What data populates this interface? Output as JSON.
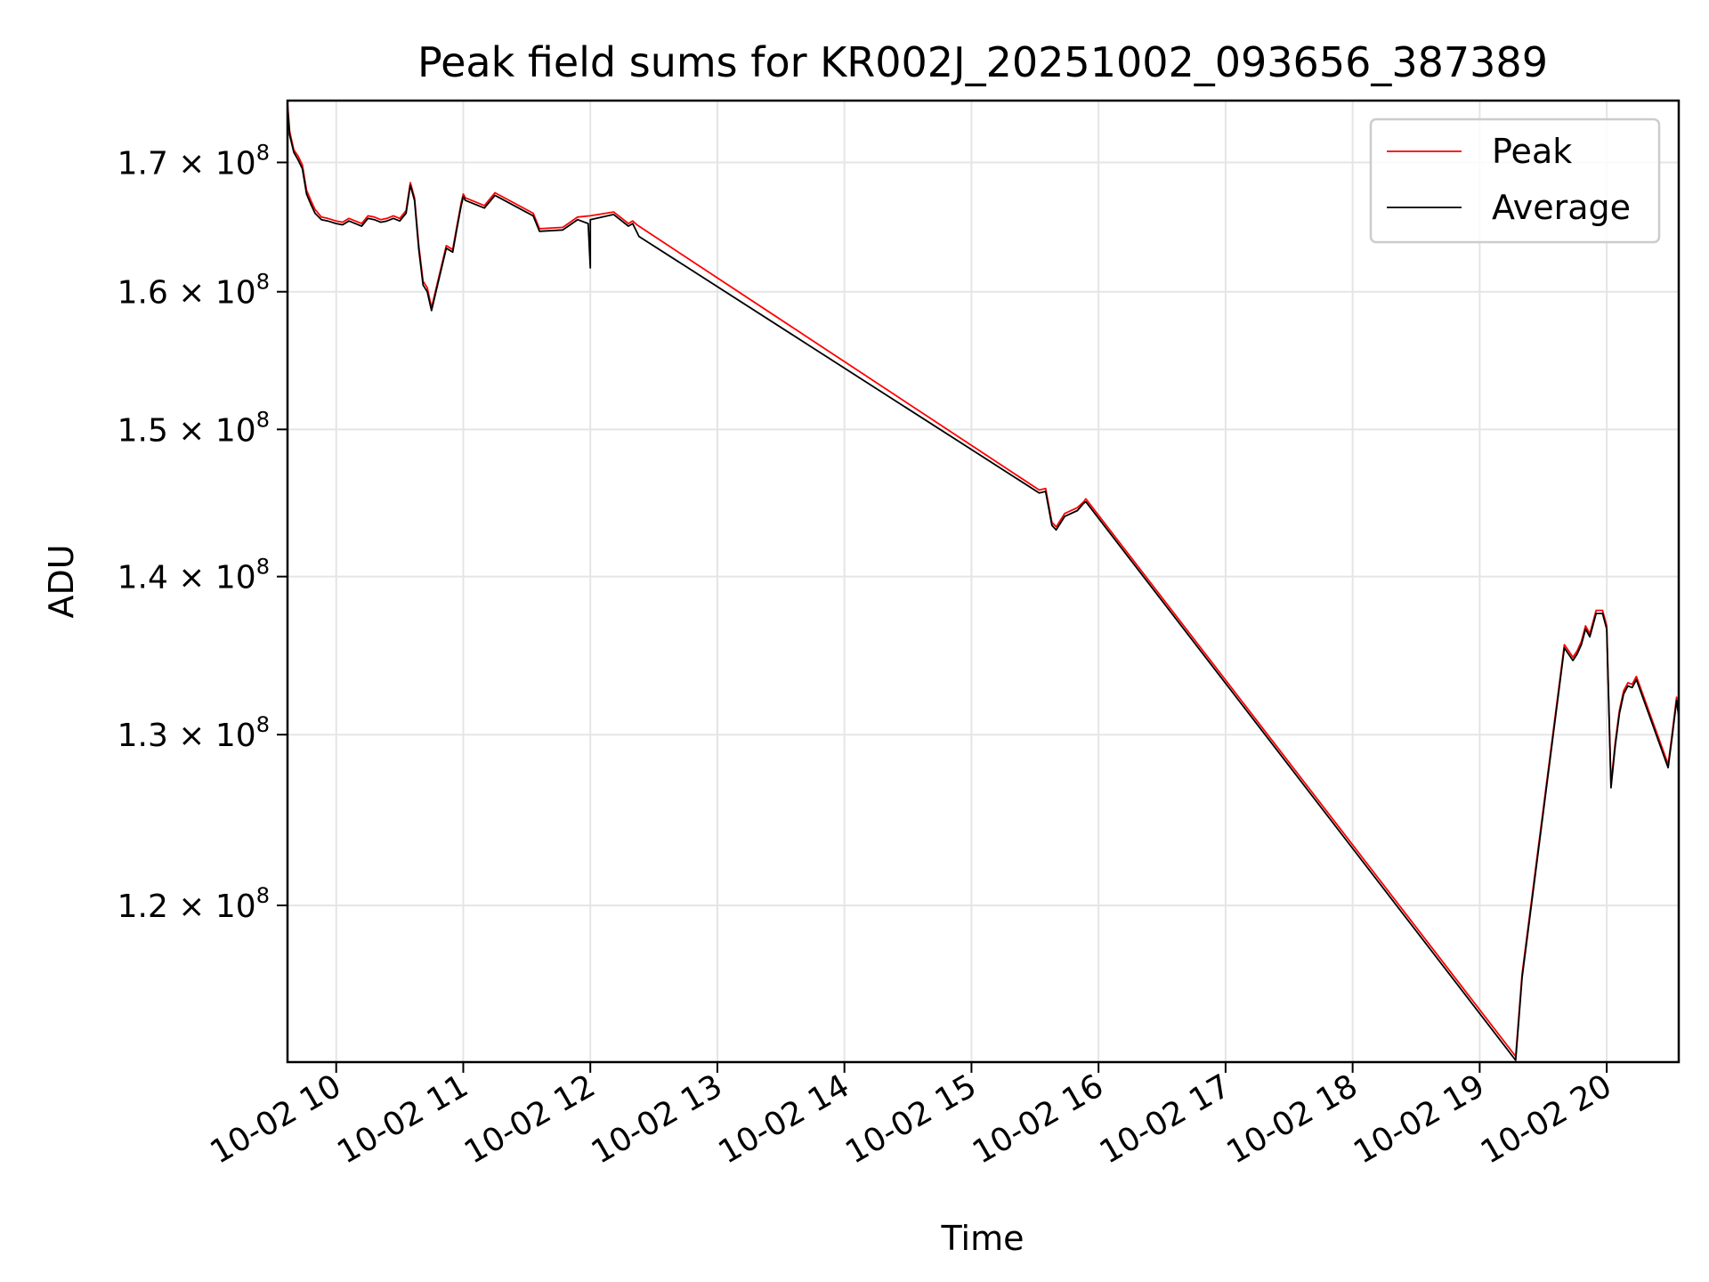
{
  "chart_data": {
    "type": "line",
    "title": "Peak field sums for KR002J_20251002_093656_387389",
    "xlabel": "Time",
    "ylabel": "ADU",
    "yscale": "log",
    "grid": true,
    "legend_position": "top-right",
    "x_ticks": [
      "10-02 10",
      "10-02 11",
      "10-02 12",
      "10-02 13",
      "10-02 14",
      "10-02 15",
      "10-02 16",
      "10-02 17",
      "10-02 18",
      "10-02 19",
      "10-02 20"
    ],
    "y_ticks": [
      {
        "value": 120000000,
        "mantissa": "1.2",
        "exponent": "8"
      },
      {
        "value": 130000000,
        "mantissa": "1.3",
        "exponent": "8"
      },
      {
        "value": 140000000,
        "mantissa": "1.4",
        "exponent": "8"
      },
      {
        "value": 150000000,
        "mantissa": "1.5",
        "exponent": "8"
      },
      {
        "value": 160000000,
        "mantissa": "1.6",
        "exponent": "8"
      },
      {
        "value": 170000000,
        "mantissa": "1.7",
        "exponent": "8"
      }
    ],
    "x_range": [
      "2025-10-02 09:37",
      "2025-10-02 20:34"
    ],
    "y_range": [
      111500000,
      175000000
    ],
    "series": [
      {
        "name": "Peak",
        "color": "#ff0000",
        "points": [
          [
            "09:37",
            174800000
          ],
          [
            "09:38",
            172500000
          ],
          [
            "09:40",
            171000000
          ],
          [
            "09:42",
            170500000
          ],
          [
            "09:44",
            169800000
          ],
          [
            "09:46",
            167800000
          ],
          [
            "09:48",
            167000000
          ],
          [
            "09:50",
            166300000
          ],
          [
            "09:53",
            165700000
          ],
          [
            "09:56",
            165600000
          ],
          [
            "10:00",
            165400000
          ],
          [
            "10:03",
            165300000
          ],
          [
            "10:06",
            165600000
          ],
          [
            "10:09",
            165400000
          ],
          [
            "10:12",
            165200000
          ],
          [
            "10:15",
            165800000
          ],
          [
            "10:18",
            165700000
          ],
          [
            "10:21",
            165500000
          ],
          [
            "10:24",
            165600000
          ],
          [
            "10:27",
            165800000
          ],
          [
            "10:30",
            165600000
          ],
          [
            "10:33",
            166200000
          ],
          [
            "10:35",
            168400000
          ],
          [
            "10:37",
            167200000
          ],
          [
            "10:39",
            163500000
          ],
          [
            "10:41",
            160800000
          ],
          [
            "10:43",
            160300000
          ],
          [
            "10:45",
            158800000
          ],
          [
            "10:48",
            160800000
          ],
          [
            "10:52",
            163500000
          ],
          [
            "10:55",
            163200000
          ],
          [
            "10:57",
            165000000
          ],
          [
            "10:59",
            166800000
          ],
          [
            "11:00",
            167500000
          ],
          [
            "11:01",
            167200000
          ],
          [
            "11:10",
            166600000
          ],
          [
            "11:15",
            167600000
          ],
          [
            "11:33",
            166000000
          ],
          [
            "11:36",
            164800000
          ],
          [
            "11:47",
            164900000
          ],
          [
            "11:54",
            165700000
          ],
          [
            "12:00",
            165800000
          ],
          [
            "12:11",
            166100000
          ],
          [
            "12:18",
            165200000
          ],
          [
            "12:20",
            165400000
          ],
          [
            "12:22",
            165100000
          ],
          [
            "15:32",
            145800000
          ],
          [
            "15:35",
            145900000
          ],
          [
            "15:38",
            143600000
          ],
          [
            "15:40",
            143300000
          ],
          [
            "15:44",
            144200000
          ],
          [
            "15:50",
            144600000
          ],
          [
            "15:53",
            145000000
          ],
          [
            "15:54",
            145200000
          ],
          [
            "19:17",
            111800000
          ],
          [
            "19:20",
            116200000
          ],
          [
            "19:40",
            135600000
          ],
          [
            "19:44",
            134800000
          ],
          [
            "19:46",
            135200000
          ],
          [
            "19:48",
            135800000
          ],
          [
            "19:50",
            136800000
          ],
          [
            "19:52",
            136300000
          ],
          [
            "19:55",
            137800000
          ],
          [
            "19:58",
            137800000
          ],
          [
            "20:00",
            136800000
          ],
          [
            "20:02",
            127000000
          ],
          [
            "20:04",
            129500000
          ],
          [
            "20:06",
            131500000
          ],
          [
            "20:08",
            132700000
          ],
          [
            "20:10",
            133200000
          ],
          [
            "20:12",
            133100000
          ],
          [
            "20:14",
            133600000
          ],
          [
            "20:29",
            128200000
          ],
          [
            "20:31",
            130200000
          ],
          [
            "20:33",
            132300000
          ],
          [
            "20:34",
            131300000
          ]
        ]
      },
      {
        "name": "Average",
        "color": "#000000",
        "points": [
          [
            "09:37",
            174600000
          ],
          [
            "09:38",
            172200000
          ],
          [
            "09:40",
            170800000
          ],
          [
            "09:42",
            170200000
          ],
          [
            "09:44",
            169500000
          ],
          [
            "09:46",
            167500000
          ],
          [
            "09:48",
            166700000
          ],
          [
            "09:50",
            166000000
          ],
          [
            "09:53",
            165500000
          ],
          [
            "09:56",
            165400000
          ],
          [
            "10:00",
            165200000
          ],
          [
            "10:03",
            165100000
          ],
          [
            "10:06",
            165400000
          ],
          [
            "10:09",
            165200000
          ],
          [
            "10:12",
            165000000
          ],
          [
            "10:15",
            165600000
          ],
          [
            "10:18",
            165500000
          ],
          [
            "10:21",
            165300000
          ],
          [
            "10:24",
            165400000
          ],
          [
            "10:27",
            165600000
          ],
          [
            "10:30",
            165400000
          ],
          [
            "10:33",
            166000000
          ],
          [
            "10:35",
            168200000
          ],
          [
            "10:37",
            167000000
          ],
          [
            "10:39",
            163200000
          ],
          [
            "10:41",
            160500000
          ],
          [
            "10:43",
            160000000
          ],
          [
            "10:45",
            158600000
          ],
          [
            "10:48",
            160600000
          ],
          [
            "10:52",
            163300000
          ],
          [
            "10:55",
            163000000
          ],
          [
            "10:57",
            164800000
          ],
          [
            "10:59",
            166600000
          ],
          [
            "11:00",
            167300000
          ],
          [
            "11:01",
            167000000
          ],
          [
            "11:10",
            166400000
          ],
          [
            "11:15",
            167400000
          ],
          [
            "11:33",
            165800000
          ],
          [
            "11:36",
            164600000
          ],
          [
            "11:47",
            164700000
          ],
          [
            "11:54",
            165500000
          ],
          [
            "11:59",
            165200000
          ],
          [
            "12:00",
            161800000
          ],
          [
            "12:00",
            165500000
          ],
          [
            "12:11",
            165900000
          ],
          [
            "12:18",
            165000000
          ],
          [
            "12:20",
            165200000
          ],
          [
            "12:23",
            164200000
          ],
          [
            "15:32",
            145600000
          ],
          [
            "15:35",
            145700000
          ],
          [
            "15:38",
            143400000
          ],
          [
            "15:40",
            143100000
          ],
          [
            "15:44",
            144000000
          ],
          [
            "15:50",
            144400000
          ],
          [
            "15:53",
            144900000
          ],
          [
            "15:54",
            145000000
          ],
          [
            "19:17",
            111600000
          ],
          [
            "19:20",
            116000000
          ],
          [
            "19:40",
            135400000
          ],
          [
            "19:44",
            134600000
          ],
          [
            "19:46",
            135000000
          ],
          [
            "19:48",
            135600000
          ],
          [
            "19:50",
            136600000
          ],
          [
            "19:52",
            136100000
          ],
          [
            "19:55",
            137600000
          ],
          [
            "19:58",
            137600000
          ],
          [
            "20:00",
            136600000
          ],
          [
            "20:02",
            126800000
          ],
          [
            "20:04",
            129300000
          ],
          [
            "20:06",
            131300000
          ],
          [
            "20:08",
            132500000
          ],
          [
            "20:10",
            133000000
          ],
          [
            "20:12",
            132900000
          ],
          [
            "20:14",
            133400000
          ],
          [
            "20:29",
            128000000
          ],
          [
            "20:31",
            130000000
          ],
          [
            "20:33",
            132100000
          ],
          [
            "20:34",
            131100000
          ]
        ]
      }
    ]
  }
}
